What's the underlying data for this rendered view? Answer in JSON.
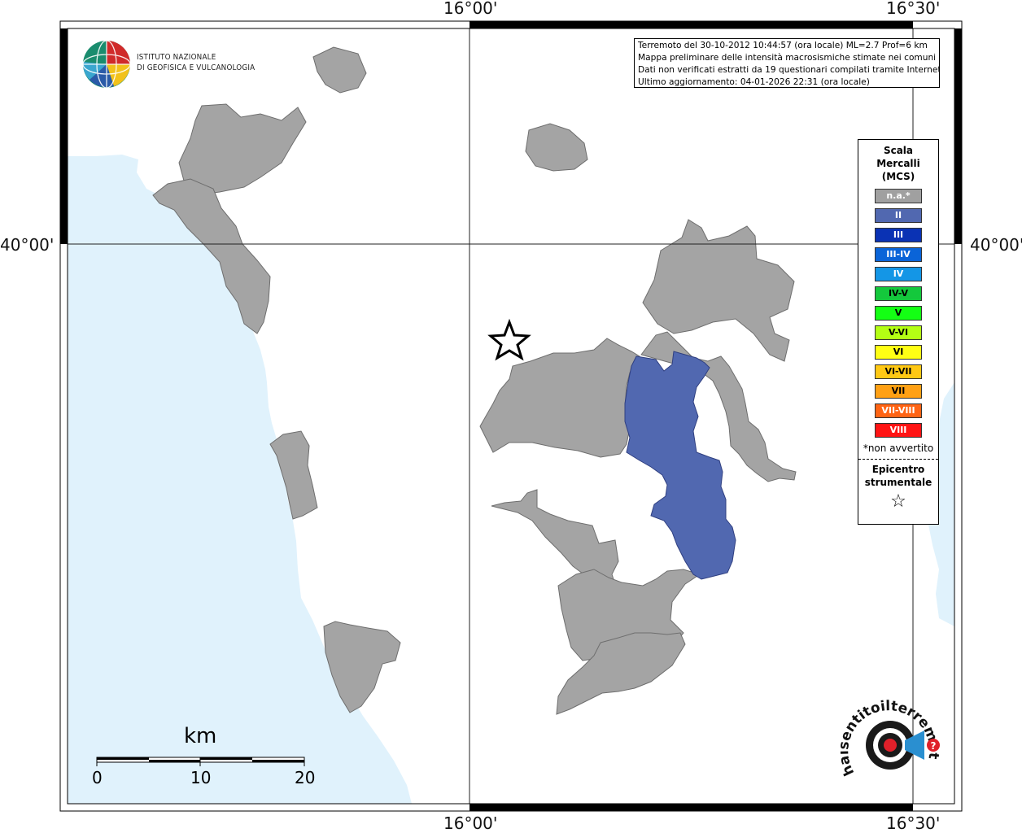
{
  "coordinates": {
    "top_left_lon": "16°00'",
    "top_right_lon": "16°30'",
    "bottom_left_lon": "16°00'",
    "bottom_right_lon": "16°30'",
    "left_lat": "40°00'",
    "right_lat": "40°00'"
  },
  "info": {
    "line1": "Terremoto del 30-10-2012 10:44:57 (ora locale) ML=2.7 Prof=6 km",
    "line2": "Mappa preliminare delle intensità macrosismiche stimate nei comuni",
    "line3": "Dati non verificati estratti da 19 questionari compilati tramite Internet.",
    "line4": "Ultimo aggiornamento: 04-01-2026 22:31 (ora locale)"
  },
  "logo": {
    "line1": "ISTITUTO NAZIONALE",
    "line2": "DI GEOFISICA E VULCANOLOGIA"
  },
  "legend": {
    "title": "Scala\nMercalli\n(MCS)",
    "rows": [
      {
        "label": "n.a.*",
        "color": "#a0a0a0"
      },
      {
        "label": "II",
        "color": "#5168b0"
      },
      {
        "label": "III",
        "color": "#0a32b4"
      },
      {
        "label": "III-IV",
        "color": "#0a64d8"
      },
      {
        "label": "IV",
        "color": "#1496e6"
      },
      {
        "label": "IV-V",
        "color": "#14c83c"
      },
      {
        "label": "V",
        "color": "#14ff14"
      },
      {
        "label": "V-VI",
        "color": "#b4ff14"
      },
      {
        "label": "VI",
        "color": "#ffff14"
      },
      {
        "label": "VI-VII",
        "color": "#ffc814"
      },
      {
        "label": "VII",
        "color": "#ffa014"
      },
      {
        "label": "VII-VIII",
        "color": "#ff6414"
      },
      {
        "label": "VIII",
        "color": "#ff1414"
      }
    ],
    "note": "*non avvertito",
    "epicenter_title": "Epicentro\nstrumentale",
    "epicenter_symbol": "☆"
  },
  "scalebar": {
    "title": "km",
    "ticks": [
      "0",
      "10",
      "20"
    ]
  },
  "colors": {
    "sea": "#e0f2fc",
    "na": "#a0a0a0",
    "intensity_ii": "#5168b0"
  },
  "bottom_logo": {
    "text": "haisentitoilterremoto.it"
  }
}
